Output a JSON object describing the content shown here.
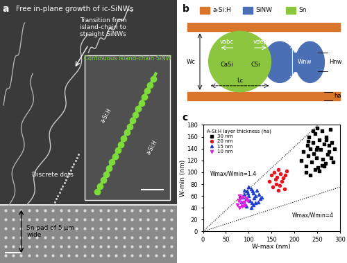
{
  "panel_labels": [
    "a",
    "b",
    "c"
  ],
  "panel_a": {
    "title": "Free in-plane growth of ic-SiNWs",
    "transition": "Transition from\nisland-chain to\nstraight SiNWs",
    "dots": "Discrete dots",
    "pad": "Sn pad of 5 μm\nwide",
    "inset": {
      "title": "Continuous island-chain SiNW",
      "labels": [
        "a-Si:H",
        "a-Si:H"
      ]
    }
  },
  "panel_b": {
    "legend": [
      {
        "name": "a-Si:H",
        "color": "#d9762b"
      },
      {
        "name": "SiNW",
        "color": "#4a6fb5"
      },
      {
        "name": "Sn",
        "color": "#8cc63e"
      }
    ],
    "symbols": {
      "width": "Wc",
      "v_abc": "vabc",
      "v_dep": "vdep",
      "c_asi": "CaSi",
      "c_si": "CSi",
      "w_nw": "Wnw",
      "h_nw": "Hnw",
      "length": "Lc",
      "h_a": "ha"
    }
  },
  "chart_data": {
    "type": "scatter",
    "x_label": "W-max (nm)",
    "y_label": "W-min (nm)",
    "xlim": [
      0,
      300
    ],
    "xticks": [
      0,
      50,
      100,
      150,
      200,
      250,
      300
    ],
    "ylim": [
      0,
      180
    ],
    "yticks": [
      0,
      20,
      40,
      60,
      80,
      100,
      120,
      140,
      160,
      180
    ],
    "legend": "upper left",
    "legend_title": "A-Si:H layer thickness (ha)",
    "reference_lines": [
      {
        "ratio": 1.4,
        "label": "Wmax/Wmin=1.4",
        "x": 15,
        "y": 95
      },
      {
        "ratio": 4,
        "label": "Wmax/Wmin=4",
        "x": 195,
        "y": 25
      }
    ],
    "series": [
      {
        "name": "30 nm",
        "color": "#000000",
        "marker": "square",
        "x": [
          215,
          220,
          225,
          228,
          230,
          232,
          235,
          238,
          240,
          242,
          245,
          248,
          250,
          252,
          255,
          258,
          260,
          262,
          265,
          268,
          270,
          272,
          275,
          278,
          280,
          282,
          285,
          288,
          225,
          235,
          245,
          255,
          265,
          275,
          240,
          250,
          260,
          270,
          230,
          248
        ],
        "values": [
          120,
          135,
          110,
          145,
          128,
          160,
          140,
          118,
          150,
          132,
          165,
          125,
          142,
          108,
          155,
          138,
          170,
          122,
          148,
          115,
          160,
          130,
          145,
          172,
          125,
          150,
          118,
          140,
          100,
          95,
          105,
          102,
          110,
          135,
          170,
          175,
          112,
          155,
          152,
          138
        ]
      },
      {
        "name": "20 nm",
        "color": "#e8141e",
        "marker": "circle",
        "x": [
          145,
          150,
          152,
          155,
          158,
          160,
          162,
          165,
          168,
          170,
          172,
          175,
          178,
          180,
          183,
          165
        ],
        "values": [
          85,
          95,
          75,
          100,
          88,
          80,
          92,
          105,
          78,
          98,
          85,
          90,
          72,
          95,
          102,
          70
        ]
      },
      {
        "name": "15 nm",
        "color": "#1f3fd0",
        "marker": "triangle_up",
        "x": [
          85,
          88,
          90,
          92,
          95,
          97,
          100,
          102,
          105,
          107,
          110,
          112,
          115,
          118,
          120,
          122,
          125,
          128,
          95,
          100,
          105,
          110,
          115,
          90,
          98,
          108
        ],
        "values": [
          50,
          58,
          62,
          45,
          55,
          68,
          60,
          52,
          72,
          48,
          65,
          57,
          60,
          70,
          50,
          62,
          55,
          58,
          42,
          75,
          40,
          45,
          48,
          70,
          65,
          68
        ]
      },
      {
        "name": "10 nm",
        "color": "#e020e0",
        "marker": "triangle_down",
        "x": [
          75,
          78,
          80,
          82,
          85,
          88,
          90,
          92,
          95,
          98,
          80,
          86
        ],
        "values": [
          45,
          52,
          40,
          55,
          48,
          58,
          50,
          44,
          55,
          52,
          60,
          42
        ]
      }
    ]
  }
}
